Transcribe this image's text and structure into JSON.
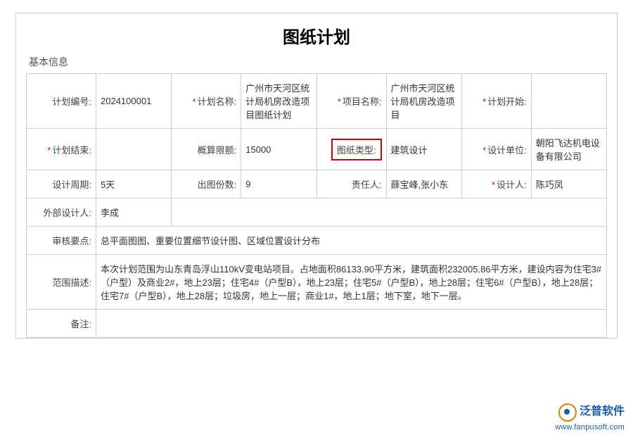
{
  "title": "图纸计划",
  "sectionTitle": "基本信息",
  "rows": [
    [
      {
        "label": "计划编号:",
        "req": false,
        "value": "2024100001"
      },
      {
        "label": "计划名称:",
        "req": true,
        "value": "广州市天河区统计局机房改造项目图纸计划"
      },
      {
        "label": "项目名称:",
        "req": true,
        "value": "广州市天河区统计局机房改造项目"
      },
      {
        "label": "计划开始:",
        "req": true,
        "value": ""
      }
    ],
    [
      {
        "label": "计划结束:",
        "req": true,
        "value": ""
      },
      {
        "label": "概算限额:",
        "req": false,
        "value": "15000"
      },
      {
        "label": "图纸类型:",
        "req": false,
        "hl": true,
        "value": "建筑设计"
      },
      {
        "label": "设计单位:",
        "req": true,
        "value": "朝阳飞达机电设备有限公司"
      }
    ],
    [
      {
        "label": "设计周期:",
        "req": false,
        "value": "5天"
      },
      {
        "label": "出图份数:",
        "req": false,
        "value": "9"
      },
      {
        "label": "责任人:",
        "req": false,
        "value": "薛宝峰,张小东"
      },
      {
        "label": "设计人:",
        "req": true,
        "value": "陈巧凤"
      }
    ],
    [
      {
        "label": "外部设计人:",
        "req": false,
        "value": "李成"
      }
    ]
  ],
  "longRows": [
    {
      "label": "审核要点:",
      "value": "总平面图图、重要位置细节设计图、区域位置设计分布"
    },
    {
      "label": "范围描述:",
      "value": "本次计划范围为山东青岛浮山110kV变电站项目。占地面积86133.90平方米，建筑面积232005.86平方米，建设内容为住宅3#（户型）及商业2#，地上23层；住宅4#（户型B），地上23层；住宅5#（户型B），地上28层；住宅6#（户型B），地上28层；住宅7#（户型B），地上28层；垃圾房，地上一层；商业1#，地上1层；地下室，地下一层。"
    },
    {
      "label": "备注:",
      "value": ""
    }
  ],
  "footer": {
    "cn": "泛普软件",
    "url": "www.fanpusoft.com"
  },
  "colors": {
    "border": "#ccc",
    "req": "#d00",
    "hl": "#d00",
    "brand": "#1a5aad"
  }
}
